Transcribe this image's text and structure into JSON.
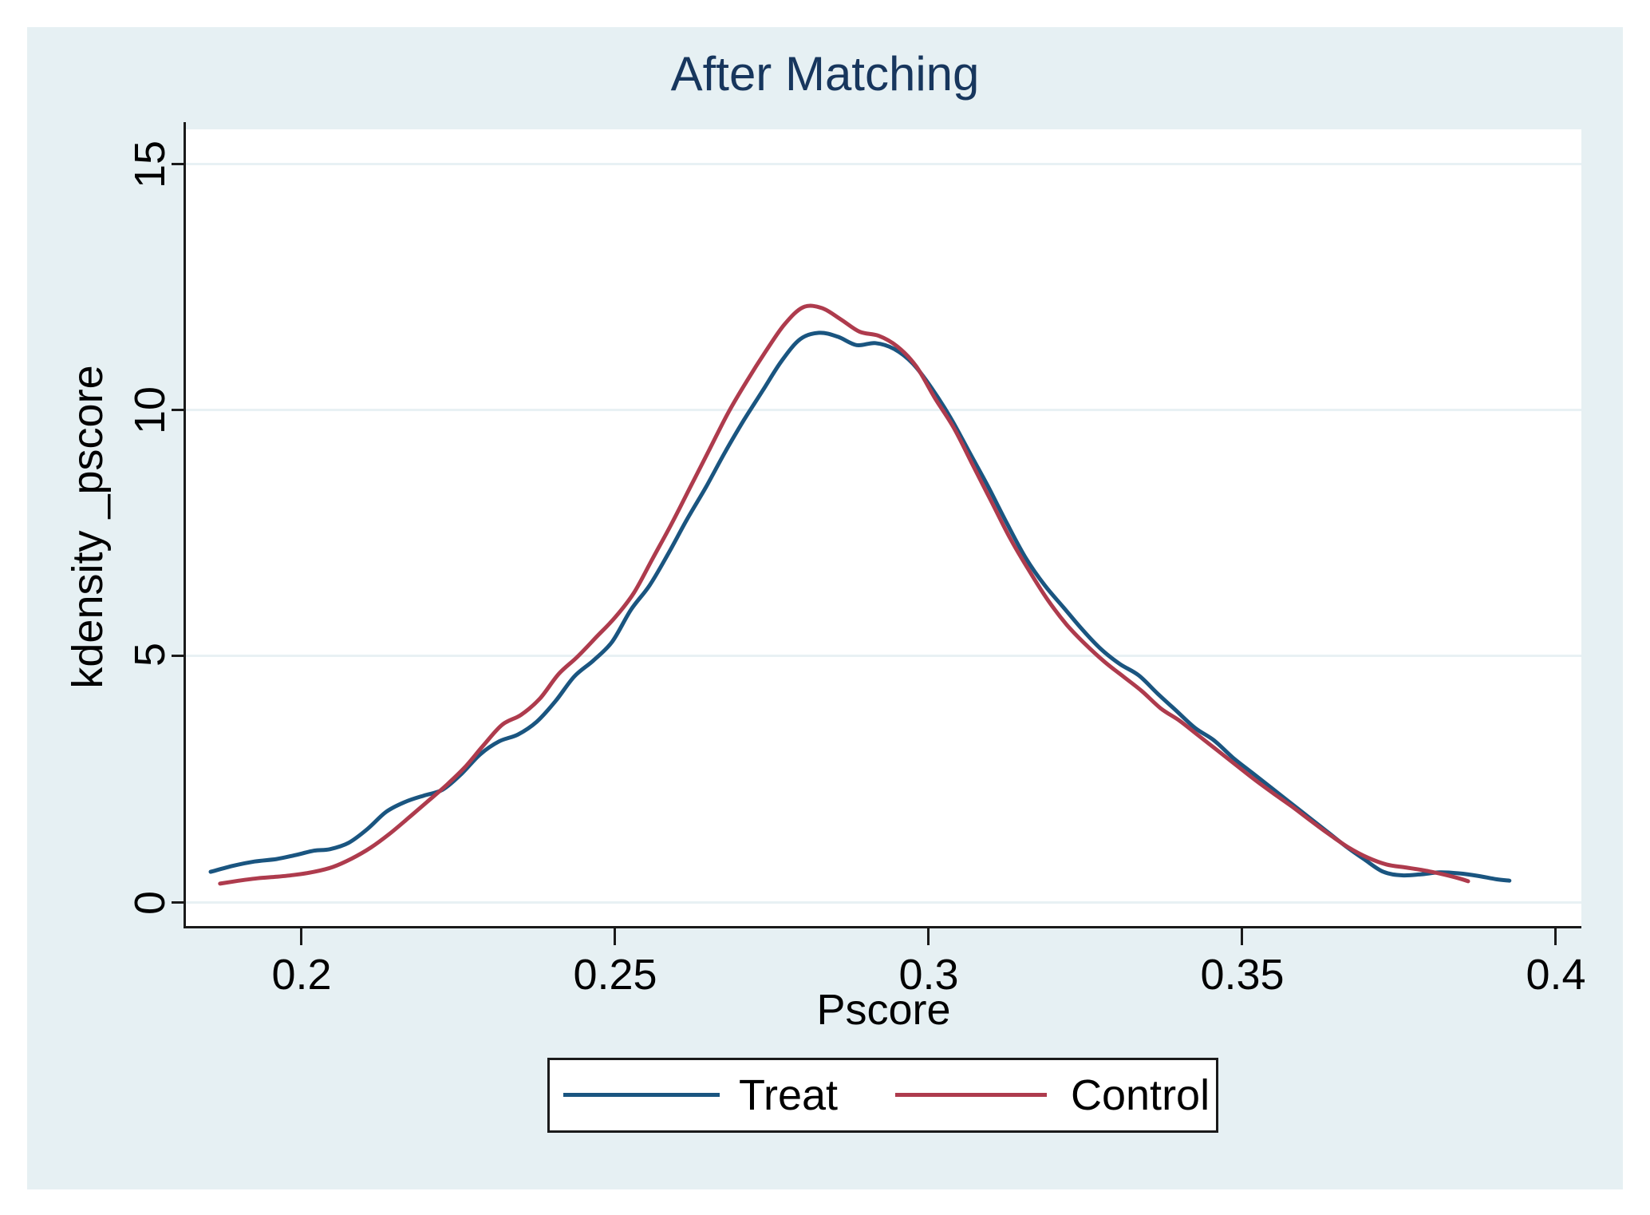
{
  "title": {
    "text": "After Matching",
    "color": "#17365D"
  },
  "axes": {
    "x": {
      "title": "Pscore",
      "tick_labels": [
        "0.2",
        "0.25",
        "0.3",
        "0.35",
        "0.4"
      ]
    },
    "y": {
      "title": "kdensity _pscore",
      "tick_labels": [
        "0",
        "5",
        "10",
        "15"
      ]
    }
  },
  "legend": {
    "items": [
      {
        "label": "Treat",
        "color": "#1A5580"
      },
      {
        "label": "Control",
        "color": "#AE3B4D"
      }
    ]
  },
  "colors": {
    "canvas_background": "#E6F0F3",
    "plot_background": "#FFFFFF",
    "gridline": "#E8F1F4",
    "axis": "#1a1a1a",
    "treat_line": "#1A5580",
    "control_line": "#AE3B4D",
    "title_text": "#17365D"
  },
  "chart_data": {
    "type": "line",
    "title": "After Matching",
    "xlabel": "Pscore",
    "ylabel": "kdensity _pscore",
    "x_ticks": [
      0.2,
      0.25,
      0.3,
      0.35,
      0.4
    ],
    "y_ticks": [
      0,
      5,
      10,
      15
    ],
    "xlim": [
      0.1815,
      0.4041
    ],
    "ylim": [
      0,
      15.8
    ],
    "grid": "horizontal",
    "legend_position": "bottom-center",
    "series": [
      {
        "name": "Treat",
        "color": "#1A5580",
        "points": [
          [
            0.1855,
            0.63
          ],
          [
            0.189,
            0.75
          ],
          [
            0.1925,
            0.84
          ],
          [
            0.196,
            0.89
          ],
          [
            0.199,
            0.97
          ],
          [
            0.202,
            1.06
          ],
          [
            0.2045,
            1.09
          ],
          [
            0.2075,
            1.22
          ],
          [
            0.2105,
            1.5
          ],
          [
            0.2135,
            1.85
          ],
          [
            0.2165,
            2.05
          ],
          [
            0.2195,
            2.18
          ],
          [
            0.2225,
            2.3
          ],
          [
            0.2255,
            2.62
          ],
          [
            0.2285,
            3.02
          ],
          [
            0.2315,
            3.28
          ],
          [
            0.2345,
            3.42
          ],
          [
            0.2375,
            3.68
          ],
          [
            0.2405,
            4.1
          ],
          [
            0.2435,
            4.6
          ],
          [
            0.2465,
            4.92
          ],
          [
            0.2495,
            5.3
          ],
          [
            0.2525,
            5.95
          ],
          [
            0.2555,
            6.45
          ],
          [
            0.2585,
            7.1
          ],
          [
            0.2615,
            7.8
          ],
          [
            0.2645,
            8.45
          ],
          [
            0.2675,
            9.15
          ],
          [
            0.2705,
            9.8
          ],
          [
            0.2735,
            10.4
          ],
          [
            0.2765,
            11.0
          ],
          [
            0.2795,
            11.45
          ],
          [
            0.2825,
            11.58
          ],
          [
            0.2855,
            11.5
          ],
          [
            0.2885,
            11.33
          ],
          [
            0.2915,
            11.37
          ],
          [
            0.2945,
            11.25
          ],
          [
            0.2975,
            10.95
          ],
          [
            0.3005,
            10.45
          ],
          [
            0.3035,
            9.85
          ],
          [
            0.3065,
            9.15
          ],
          [
            0.3095,
            8.45
          ],
          [
            0.3125,
            7.7
          ],
          [
            0.3155,
            7.0
          ],
          [
            0.3185,
            6.45
          ],
          [
            0.3215,
            6.0
          ],
          [
            0.3245,
            5.55
          ],
          [
            0.3275,
            5.15
          ],
          [
            0.3305,
            4.85
          ],
          [
            0.3335,
            4.62
          ],
          [
            0.3365,
            4.25
          ],
          [
            0.3395,
            3.9
          ],
          [
            0.3425,
            3.55
          ],
          [
            0.3455,
            3.3
          ],
          [
            0.3485,
            2.95
          ],
          [
            0.3515,
            2.65
          ],
          [
            0.3545,
            2.35
          ],
          [
            0.3575,
            2.05
          ],
          [
            0.3605,
            1.75
          ],
          [
            0.3635,
            1.45
          ],
          [
            0.3665,
            1.15
          ],
          [
            0.3695,
            0.88
          ],
          [
            0.3725,
            0.63
          ],
          [
            0.3755,
            0.56
          ],
          [
            0.3785,
            0.58
          ],
          [
            0.3815,
            0.62
          ],
          [
            0.3845,
            0.6
          ],
          [
            0.3875,
            0.55
          ],
          [
            0.3905,
            0.48
          ],
          [
            0.3926,
            0.45
          ]
        ]
      },
      {
        "name": "Control",
        "color": "#AE3B4D",
        "points": [
          [
            0.187,
            0.39
          ],
          [
            0.19,
            0.45
          ],
          [
            0.193,
            0.5
          ],
          [
            0.196,
            0.53
          ],
          [
            0.199,
            0.57
          ],
          [
            0.202,
            0.63
          ],
          [
            0.205,
            0.73
          ],
          [
            0.208,
            0.9
          ],
          [
            0.211,
            1.12
          ],
          [
            0.214,
            1.4
          ],
          [
            0.217,
            1.72
          ],
          [
            0.22,
            2.05
          ],
          [
            0.223,
            2.38
          ],
          [
            0.226,
            2.75
          ],
          [
            0.229,
            3.2
          ],
          [
            0.232,
            3.62
          ],
          [
            0.235,
            3.82
          ],
          [
            0.238,
            4.15
          ],
          [
            0.241,
            4.65
          ],
          [
            0.244,
            5.0
          ],
          [
            0.247,
            5.4
          ],
          [
            0.25,
            5.8
          ],
          [
            0.253,
            6.3
          ],
          [
            0.256,
            7.0
          ],
          [
            0.259,
            7.7
          ],
          [
            0.262,
            8.45
          ],
          [
            0.265,
            9.2
          ],
          [
            0.268,
            9.95
          ],
          [
            0.271,
            10.6
          ],
          [
            0.274,
            11.2
          ],
          [
            0.277,
            11.75
          ],
          [
            0.28,
            12.1
          ],
          [
            0.283,
            12.08
          ],
          [
            0.286,
            11.85
          ],
          [
            0.289,
            11.6
          ],
          [
            0.292,
            11.52
          ],
          [
            0.295,
            11.3
          ],
          [
            0.298,
            10.9
          ],
          [
            0.301,
            10.25
          ],
          [
            0.304,
            9.65
          ],
          [
            0.307,
            8.9
          ],
          [
            0.31,
            8.15
          ],
          [
            0.313,
            7.4
          ],
          [
            0.316,
            6.75
          ],
          [
            0.319,
            6.15
          ],
          [
            0.322,
            5.65
          ],
          [
            0.325,
            5.25
          ],
          [
            0.328,
            4.9
          ],
          [
            0.331,
            4.6
          ],
          [
            0.334,
            4.3
          ],
          [
            0.337,
            3.95
          ],
          [
            0.34,
            3.7
          ],
          [
            0.343,
            3.4
          ],
          [
            0.346,
            3.1
          ],
          [
            0.349,
            2.8
          ],
          [
            0.352,
            2.5
          ],
          [
            0.355,
            2.22
          ],
          [
            0.358,
            1.95
          ],
          [
            0.361,
            1.66
          ],
          [
            0.364,
            1.38
          ],
          [
            0.367,
            1.12
          ],
          [
            0.37,
            0.92
          ],
          [
            0.373,
            0.78
          ],
          [
            0.376,
            0.72
          ],
          [
            0.379,
            0.66
          ],
          [
            0.382,
            0.58
          ],
          [
            0.3845,
            0.5
          ],
          [
            0.386,
            0.44
          ]
        ]
      }
    ]
  }
}
